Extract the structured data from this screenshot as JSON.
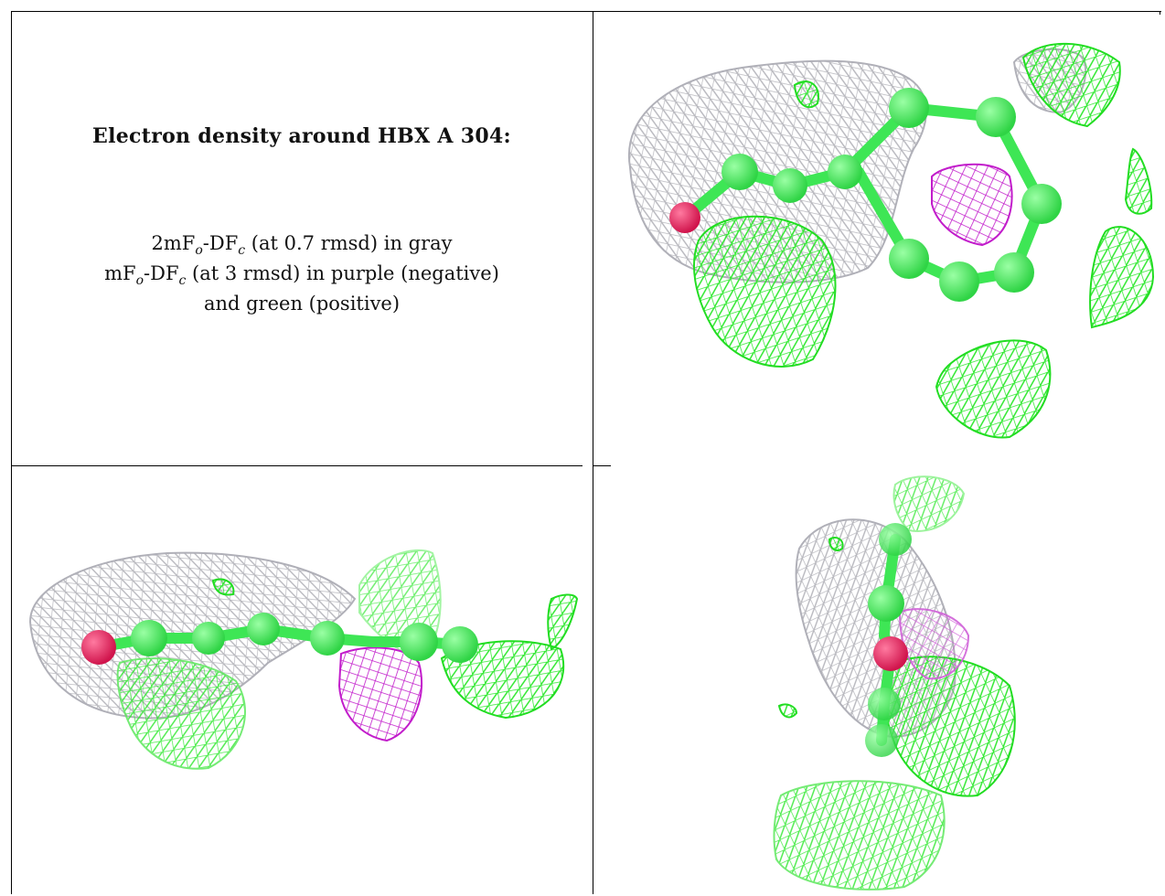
{
  "caption": {
    "title": "Electron density around HBX A 304:",
    "line1": {
      "prefix": "2mF",
      "sub1": "o",
      "mid": "-DF",
      "sub2": "c",
      "suffix": " (at 0.7 rmsd) in gray"
    },
    "line2": {
      "prefix": "mF",
      "sub1": "o",
      "mid": "-DF",
      "sub2": "c",
      "suffix": " (at 3 rmsd) in purple (negative)"
    },
    "line3": "and green (positive)"
  },
  "panels": [
    {
      "id": "top-right-view",
      "alt": "ligand density view 1"
    },
    {
      "id": "bottom-left-view",
      "alt": "ligand density view 2"
    },
    {
      "id": "bottom-right-view",
      "alt": "ligand density view 3"
    }
  ],
  "colors": {
    "gray_mesh": "#b9b9c0",
    "green_mesh": "#2eea2e",
    "purple_mesh": "#c020c8",
    "atom_green": "#3ee655",
    "atom_red": "#e0205a"
  }
}
